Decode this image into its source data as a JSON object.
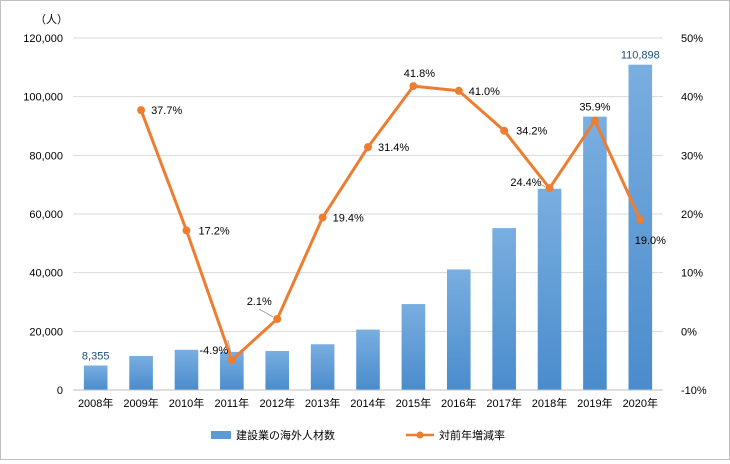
{
  "chart_data": {
    "type": "bar+line",
    "unit_label": "（人）",
    "categories": [
      "2008年",
      "2009年",
      "2010年",
      "2011年",
      "2012年",
      "2013年",
      "2014年",
      "2015年",
      "2016年",
      "2017年",
      "2018年",
      "2019年",
      "2020年"
    ],
    "series": [
      {
        "name": "建設業の海外人材数",
        "type": "bar",
        "axis": "left",
        "color": "#5b9bd5",
        "values": [
          8355,
          11600,
          13700,
          13000,
          13300,
          15600,
          20600,
          29300,
          41100,
          55200,
          68600,
          93200,
          110898
        ]
      },
      {
        "name": "対前年増減率",
        "type": "line",
        "axis": "right",
        "color": "#ed7d31",
        "values": [
          null,
          37.7,
          17.2,
          -4.9,
          2.1,
          19.4,
          31.4,
          41.8,
          41.0,
          34.2,
          24.4,
          35.9,
          19.0
        ],
        "labels": [
          null,
          "37.7%",
          "17.2%",
          "-4.9%",
          "2.1%",
          "19.4%",
          "31.4%",
          "41.8%",
          "41.0%",
          "34.2%",
          "24.4%",
          "35.9%",
          "19.0%"
        ]
      }
    ],
    "bar_value_labels": {
      "0": "8,355",
      "12": "110,898"
    },
    "y_left": {
      "min": 0,
      "max": 120000,
      "ticks": [
        "0",
        "20,000",
        "40,000",
        "60,000",
        "80,000",
        "100,000",
        "120,000"
      ]
    },
    "y_right": {
      "min": -10,
      "max": 50,
      "ticks": [
        "-10%",
        "0%",
        "10%",
        "20%",
        "30%",
        "40%",
        "50%"
      ]
    },
    "legend": {
      "position": "bottom"
    }
  }
}
